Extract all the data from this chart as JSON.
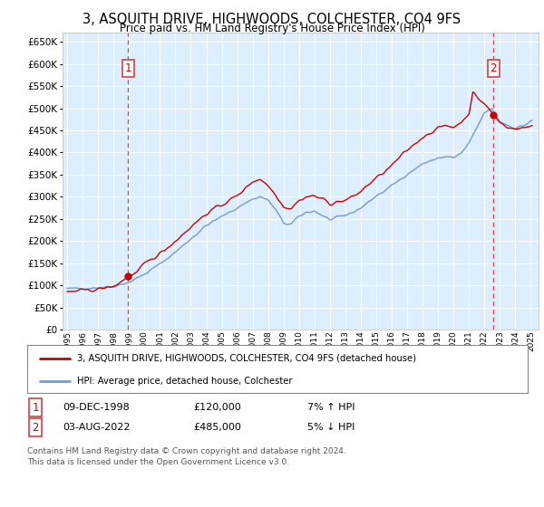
{
  "title": "3, ASQUITH DRIVE, HIGHWOODS, COLCHESTER, CO4 9FS",
  "subtitle": "Price paid vs. HM Land Registry's House Price Index (HPI)",
  "bg_color": "#ddeeff",
  "ylim": [
    0,
    670000
  ],
  "yticks": [
    0,
    50000,
    100000,
    150000,
    200000,
    250000,
    300000,
    350000,
    400000,
    450000,
    500000,
    550000,
    600000,
    650000
  ],
  "sale1_year": 1998.95,
  "sale1_price": 120000,
  "sale2_year": 2022.58,
  "sale2_price": 485000,
  "legend_line1": "3, ASQUITH DRIVE, HIGHWOODS, COLCHESTER, CO4 9FS (detached house)",
  "legend_line2": "HPI: Average price, detached house, Colchester",
  "footer": "Contains HM Land Registry data © Crown copyright and database right 2024.\nThis data is licensed under the Open Government Licence v3.0.",
  "line_red": "#cc0000",
  "line_blue": "#7799cc",
  "xlim_min": 1994.7,
  "xlim_max": 2025.5
}
